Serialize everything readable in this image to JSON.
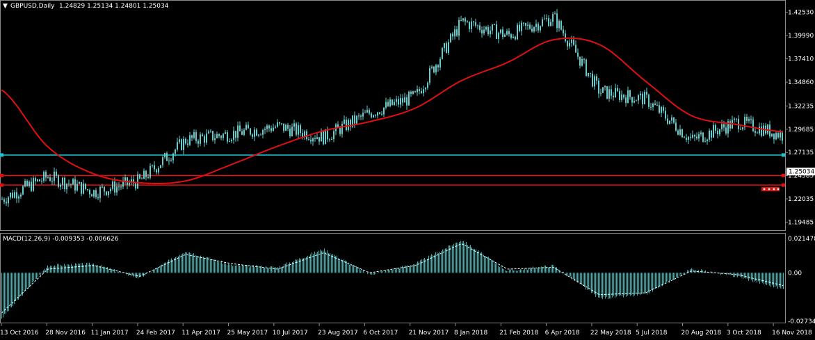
{
  "header": {
    "collapse_glyph": "▼",
    "symbol": "GBPUSD,Daily",
    "ohlc": "1.24829 1.25134 1.24801 1.25034"
  },
  "macd_header": "MACD(12,26,9) -0.009353 -0.006626",
  "colors": {
    "background": "#000000",
    "candle": "#66cccc",
    "histogram": "#33b3b3",
    "moving_average": "#e01010",
    "support_line": "#18c8d8",
    "resistance_line": "#e01010",
    "signal_line": "#ffffff",
    "price_badge_bg": "#ffffff"
  },
  "chart_data": [
    {
      "type": "line",
      "title": "GBPUSD,Daily",
      "ylim": [
        1.186,
        1.438
      ],
      "y_ticks": [
        "1.42530",
        "1.39990",
        "1.37410",
        "1.34860",
        "1.32235",
        "1.29685",
        "1.27135",
        "1.24585",
        "1.22035",
        "1.19485"
      ],
      "current_price": "1.25034",
      "x_ticks": [
        "13 Oct 2016",
        "28 Nov 2016",
        "11 Jan 2017",
        "24 Feb 2017",
        "11 Apr 2017",
        "25 May 2017",
        "10 Jul 2017",
        "23 Aug 2017",
        "6 Oct 2017",
        "21 Nov 2017",
        "8 Jan 2018",
        "21 Feb 2018",
        "6 Apr 2018",
        "22 May 2018",
        "5 Jul 2018",
        "20 Aug 2018",
        "3 Oct 2018",
        "16 Nov 2018"
      ],
      "series": [
        {
          "name": "close",
          "x": [
            "13 Oct 2016",
            "28 Nov 2016",
            "11 Jan 2017",
            "24 Feb 2017",
            "11 Apr 2017",
            "25 May 2017",
            "10 Jul 2017",
            "23 Aug 2017",
            "6 Oct 2017",
            "21 Nov 2017",
            "8 Jan 2018",
            "21 Feb 2018",
            "6 Apr 2018",
            "22 May 2018",
            "5 Jul 2018",
            "20 Aug 2018",
            "3 Oct 2018",
            "16 Nov 2018"
          ],
          "values": [
            1.22,
            1.245,
            1.228,
            1.24,
            1.285,
            1.292,
            1.3,
            1.288,
            1.315,
            1.333,
            1.415,
            1.4,
            1.42,
            1.338,
            1.33,
            1.285,
            1.305,
            1.29
          ]
        },
        {
          "name": "moving average",
          "x": [
            "13 Oct 2016",
            "28 Nov 2016",
            "11 Jan 2017",
            "24 Feb 2017",
            "11 Apr 2017",
            "25 May 2017",
            "10 Jul 2017",
            "23 Aug 2017",
            "6 Oct 2017",
            "21 Nov 2017",
            "8 Jan 2018",
            "21 Feb 2018",
            "6 Apr 2018",
            "22 May 2018",
            "5 Jul 2018",
            "20 Aug 2018",
            "3 Oct 2018",
            "16 Nov 2018"
          ],
          "values": [
            1.34,
            1.278,
            1.248,
            1.238,
            1.24,
            1.258,
            1.278,
            1.295,
            1.305,
            1.32,
            1.35,
            1.37,
            1.395,
            1.39,
            1.35,
            1.312,
            1.302,
            1.294
          ]
        }
      ],
      "horizontal_lines": [
        {
          "kind": "support",
          "value": 1.2685
        },
        {
          "kind": "resistance",
          "value": 1.246
        },
        {
          "kind": "resistance",
          "value": 1.2355
        }
      ]
    },
    {
      "type": "bar",
      "title": "MACD(12,26,9) -0.009353 -0.006626",
      "ylim": [
        -0.02734,
        0.02147
      ],
      "y_ticks": [
        "0.021478",
        "0.00",
        "-0.027346"
      ],
      "series": [
        {
          "name": "MACD",
          "x": [
            "13 Oct 2016",
            "28 Nov 2016",
            "11 Jan 2017",
            "24 Feb 2017",
            "11 Apr 2017",
            "25 May 2017",
            "10 Jul 2017",
            "23 Aug 2017",
            "6 Oct 2017",
            "21 Nov 2017",
            "8 Jan 2018",
            "21 Feb 2018",
            "6 Apr 2018",
            "22 May 2018",
            "5 Jul 2018",
            "20 Aug 2018",
            "3 Oct 2018",
            "16 Nov 2018"
          ],
          "values": [
            -0.025,
            0.004,
            0.005,
            -0.003,
            0.012,
            0.004,
            0.003,
            0.013,
            -0.001,
            0.005,
            0.018,
            0.001,
            0.004,
            -0.014,
            -0.012,
            0.002,
            -0.002,
            -0.009
          ]
        },
        {
          "name": "signal",
          "x": [
            "13 Oct 2016",
            "28 Nov 2016",
            "11 Jan 2017",
            "24 Feb 2017",
            "11 Apr 2017",
            "25 May 2017",
            "10 Jul 2017",
            "23 Aug 2017",
            "6 Oct 2017",
            "21 Nov 2017",
            "8 Jan 2018",
            "21 Feb 2018",
            "6 Apr 2018",
            "22 May 2018",
            "5 Jul 2018",
            "20 Aug 2018",
            "3 Oct 2018",
            "16 Nov 2018"
          ],
          "values": [
            -0.022,
            0.002,
            0.004,
            -0.002,
            0.01,
            0.005,
            0.002,
            0.011,
            0.0,
            0.004,
            0.016,
            0.002,
            0.003,
            -0.012,
            -0.011,
            0.001,
            -0.001,
            -0.007
          ]
        }
      ]
    }
  ]
}
